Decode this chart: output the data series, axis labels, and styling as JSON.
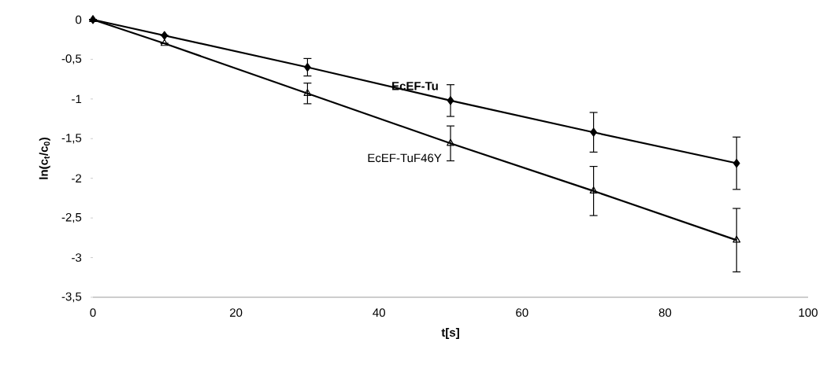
{
  "chart_data": {
    "type": "line",
    "xlabel": "t[s]",
    "ylabel": "ln(c$_{t}$/c$_{0}$)",
    "x": [
      0,
      10,
      30,
      50,
      70,
      90
    ],
    "series": [
      {
        "name": "EcEF-Tu",
        "color": "#000000",
        "marker": "diamond",
        "values": [
          0,
          -0.2,
          -0.6,
          -1.02,
          -1.42,
          -1.81
        ],
        "errors": [
          null,
          null,
          0.11,
          0.2,
          0.25,
          0.33
        ]
      },
      {
        "name": "EcEF-TuF46Y",
        "color": "#000000",
        "marker": "triangle",
        "values": [
          0,
          -0.3,
          -0.93,
          -1.56,
          -2.16,
          -2.78
        ],
        "errors": [
          null,
          null,
          0.13,
          0.22,
          0.31,
          0.4
        ]
      }
    ],
    "xlim": [
      0,
      100
    ],
    "ylim": [
      -3.5,
      0
    ],
    "xticks": [
      0,
      20,
      40,
      60,
      80,
      100
    ],
    "yticks": [
      0,
      {
        "value": -0.5,
        "label": "-0,5"
      },
      -1,
      {
        "value": -1.5,
        "label": "-1,5"
      },
      -2,
      {
        "value": -2.5,
        "label": "-2,5"
      },
      -3,
      {
        "value": -3.5,
        "label": "-3,5"
      }
    ],
    "grid": false,
    "legend": false,
    "line_style": "solid"
  }
}
